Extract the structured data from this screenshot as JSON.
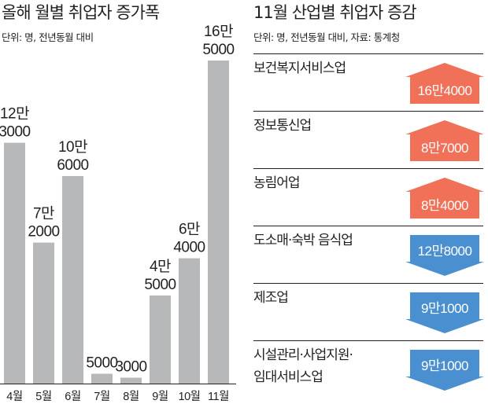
{
  "left": {
    "title": "올해 월별 취업자 증가폭",
    "unit": "단위: 명, 전년동월 대비"
  },
  "right": {
    "title": "11월 산업별 취업자 증감",
    "unit": "단위: 명, 전년동월 대비, 자료: 통계청",
    "rows": [
      {
        "label_lines": [
          "보건복지서비스업"
        ],
        "value_text": "16만4000",
        "value": 164000,
        "direction": "up"
      },
      {
        "label_lines": [
          "정보통신업"
        ],
        "value_text": "8만7000",
        "value": 87000,
        "direction": "up"
      },
      {
        "label_lines": [
          "농림어업"
        ],
        "value_text": "8만4000",
        "value": 84000,
        "direction": "up"
      },
      {
        "label_lines": [
          "도소매·숙박 음식업"
        ],
        "value_text": "12만8000",
        "value": -128000,
        "direction": "down"
      },
      {
        "label_lines": [
          "제조업"
        ],
        "value_text": "9만1000",
        "value": -91000,
        "direction": "down"
      },
      {
        "label_lines": [
          "시설관리·사업지원·",
          "임대서비스업"
        ],
        "value_text": "9만1000",
        "value": -91000,
        "direction": "down"
      }
    ]
  },
  "colors": {
    "bar": "#b7b8ba",
    "up": "#f07058",
    "down": "#4a8fd0",
    "text": "#231f20"
  },
  "chart_data": [
    {
      "type": "bar",
      "title": "올해 월별 취업자 증가폭",
      "subtitle": "단위: 명, 전년동월 대비",
      "categories": [
        "4월",
        "5월",
        "6월",
        "7월",
        "8월",
        "9월",
        "10월",
        "11월"
      ],
      "values": [
        123000,
        72000,
        106000,
        5000,
        3000,
        45000,
        64000,
        165000
      ],
      "data_labels": [
        [
          "12만",
          "3000"
        ],
        [
          "7만",
          "2000"
        ],
        [
          "10만",
          "6000"
        ],
        [
          "5000"
        ],
        [
          "3000"
        ],
        [
          "4만",
          "5000"
        ],
        [
          "6만",
          "4000"
        ],
        [
          "16만",
          "5000"
        ]
      ],
      "ylim": [
        0,
        170000
      ],
      "grid": false
    },
    {
      "type": "bar",
      "title": "11월 산업별 취업자 증감",
      "subtitle": "단위: 명, 전년동월 대비, 자료: 통계청",
      "categories": [
        "보건복지서비스업",
        "정보통신업",
        "농림어업",
        "도소매·숙박 음식업",
        "제조업",
        "시설관리·사업지원·임대서비스업"
      ],
      "values": [
        164000,
        87000,
        84000,
        -128000,
        -91000,
        -91000
      ]
    }
  ]
}
